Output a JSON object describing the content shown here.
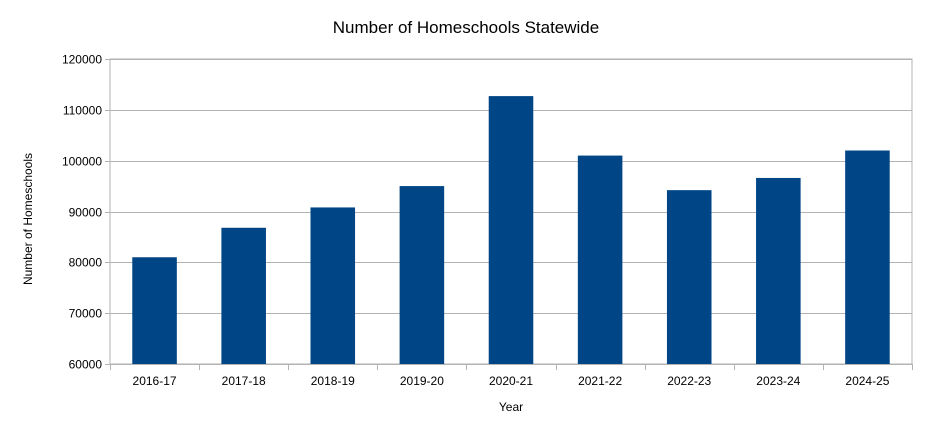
{
  "chart_data": {
    "type": "bar",
    "title": "Number of Homeschools Statewide",
    "xlabel": "Year",
    "ylabel": "Number of Homeschools",
    "categories": [
      "2016-17",
      "2017-18",
      "2018-19",
      "2019-20",
      "2020-21",
      "2021-22",
      "2022-23",
      "2023-24",
      "2024-25"
    ],
    "values": [
      81000,
      86800,
      90800,
      95000,
      112700,
      101000,
      94200,
      96600,
      102000
    ],
    "ylim": [
      60000,
      120000
    ],
    "yticks": [
      60000,
      70000,
      80000,
      90000,
      100000,
      110000,
      120000
    ],
    "grid": true,
    "legend": "none",
    "bar_color": "#004586",
    "grid_color": "#b3b3b3"
  }
}
